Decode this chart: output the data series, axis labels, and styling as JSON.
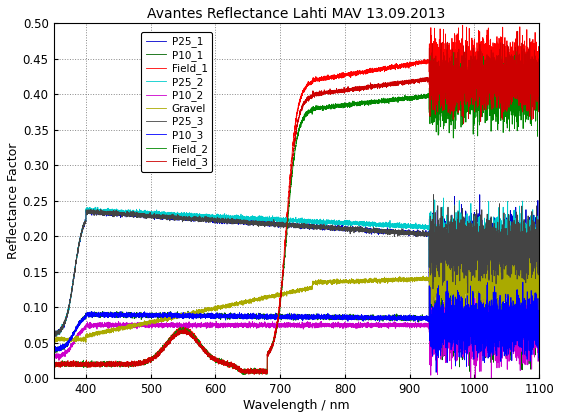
{
  "title": "Avantes Reflectance Lahti MAV 13.09.2013",
  "xlabel": "Wavelength / nm",
  "ylabel": "Reflectance Factor",
  "xlim": [
    350,
    1100
  ],
  "ylim": [
    0,
    0.5
  ],
  "xticks": [
    400,
    500,
    600,
    700,
    800,
    900,
    1000,
    1100
  ],
  "yticks": [
    0,
    0.05,
    0.1,
    0.15,
    0.2,
    0.25,
    0.3,
    0.35,
    0.4,
    0.45,
    0.5
  ],
  "background_color": "#ffffff",
  "series_colors": {
    "P25_1": "#0000cc",
    "P10_1": "#006400",
    "Field_1": "#ff0000",
    "P25_2": "#00cccc",
    "P10_2": "#cc00cc",
    "Gravel": "#aaaa00",
    "P25_3": "#444444",
    "P10_3": "#0000ff",
    "Field_2": "#008800",
    "Field_3": "#cc0000"
  }
}
